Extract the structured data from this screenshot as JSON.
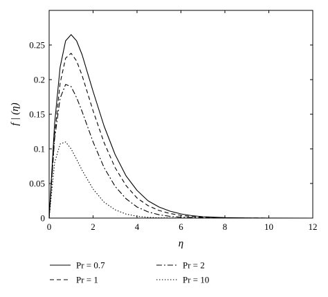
{
  "chart_data": {
    "type": "line",
    "xlabel": "η",
    "ylabel": "f | (η)",
    "xlim": [
      0,
      12
    ],
    "ylim": [
      0,
      0.3
    ],
    "xticks": [
      "0",
      "2",
      "4",
      "6",
      "8",
      "10",
      "12"
    ],
    "yticks": [
      "0",
      "0.05",
      "0.1",
      "0.15",
      "0.2",
      "0.25"
    ],
    "grid": false,
    "legend_position": "bottom",
    "series": [
      {
        "name": "Pr = 0.7",
        "style": "solid",
        "color": "#000000",
        "x": [
          0,
          0.25,
          0.5,
          0.75,
          1.0,
          1.25,
          1.5,
          2.0,
          2.5,
          3.0,
          3.5,
          4.0,
          4.5,
          5.0,
          5.5,
          6.0,
          6.5,
          7.0,
          8.0,
          9.0,
          10.0,
          12.0
        ],
        "y": [
          0,
          0.137,
          0.218,
          0.256,
          0.265,
          0.256,
          0.236,
          0.183,
          0.133,
          0.092,
          0.061,
          0.04,
          0.025,
          0.016,
          0.01,
          0.006,
          0.0035,
          0.002,
          0.0007,
          0.0002,
          0.0001,
          0
        ]
      },
      {
        "name": "Pr = 1",
        "style": "dashed",
        "color": "#000000",
        "x": [
          0,
          0.25,
          0.5,
          0.75,
          1.0,
          1.25,
          1.5,
          2.0,
          2.5,
          3.0,
          3.5,
          4.0,
          4.5,
          5.0,
          5.5,
          6.0,
          6.5,
          7.0,
          8.0,
          9.0,
          10.0,
          12.0
        ],
        "y": [
          0,
          0.12,
          0.195,
          0.231,
          0.238,
          0.227,
          0.206,
          0.155,
          0.109,
          0.073,
          0.047,
          0.029,
          0.018,
          0.011,
          0.0066,
          0.0039,
          0.0023,
          0.0013,
          0.0004,
          0.0001,
          0,
          0
        ]
      },
      {
        "name": "Pr = 2",
        "style": "dashdot",
        "color": "#000000",
        "x": [
          0,
          0.25,
          0.5,
          0.75,
          1.0,
          1.25,
          1.5,
          2.0,
          2.5,
          3.0,
          3.5,
          4.0,
          4.5,
          5.0,
          5.5,
          6.0,
          7.0,
          8.0,
          10.0,
          12.0
        ],
        "y": [
          0,
          0.115,
          0.173,
          0.193,
          0.19,
          0.174,
          0.154,
          0.11,
          0.073,
          0.046,
          0.028,
          0.016,
          0.009,
          0.0048,
          0.0025,
          0.0013,
          0.0003,
          0.0001,
          0,
          0
        ]
      },
      {
        "name": "Pr = 10",
        "style": "dotted",
        "color": "#000000",
        "x": [
          0,
          0.25,
          0.5,
          0.75,
          1.0,
          1.25,
          1.5,
          2.0,
          2.5,
          3.0,
          3.5,
          4.0,
          4.5,
          5.0,
          6.0,
          8.0,
          12.0
        ],
        "y": [
          0,
          0.08,
          0.107,
          0.11,
          0.1,
          0.085,
          0.069,
          0.042,
          0.023,
          0.012,
          0.0058,
          0.0026,
          0.0011,
          0.0004,
          0.0001,
          0,
          0
        ]
      }
    ]
  }
}
